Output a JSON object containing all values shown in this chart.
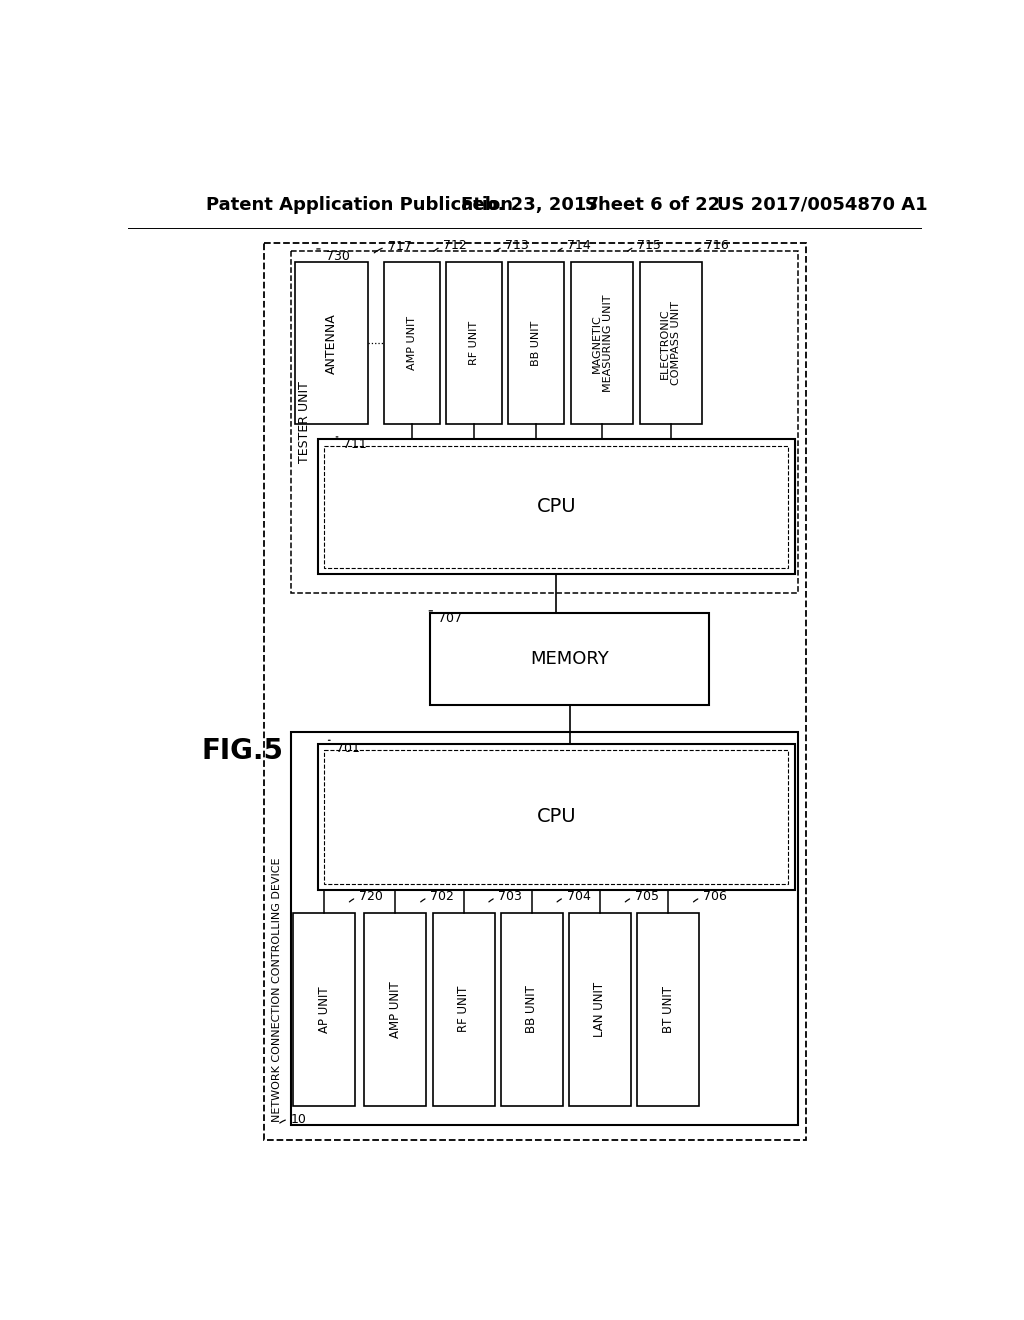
{
  "bg_color": "#ffffff",
  "header_text": "Patent Application Publication",
  "header_date": "Feb. 23, 2017",
  "header_sheet": "Sheet 6 of 22",
  "header_patent": "US 2017/0054870 A1",
  "fig_label": "FIG.5"
}
